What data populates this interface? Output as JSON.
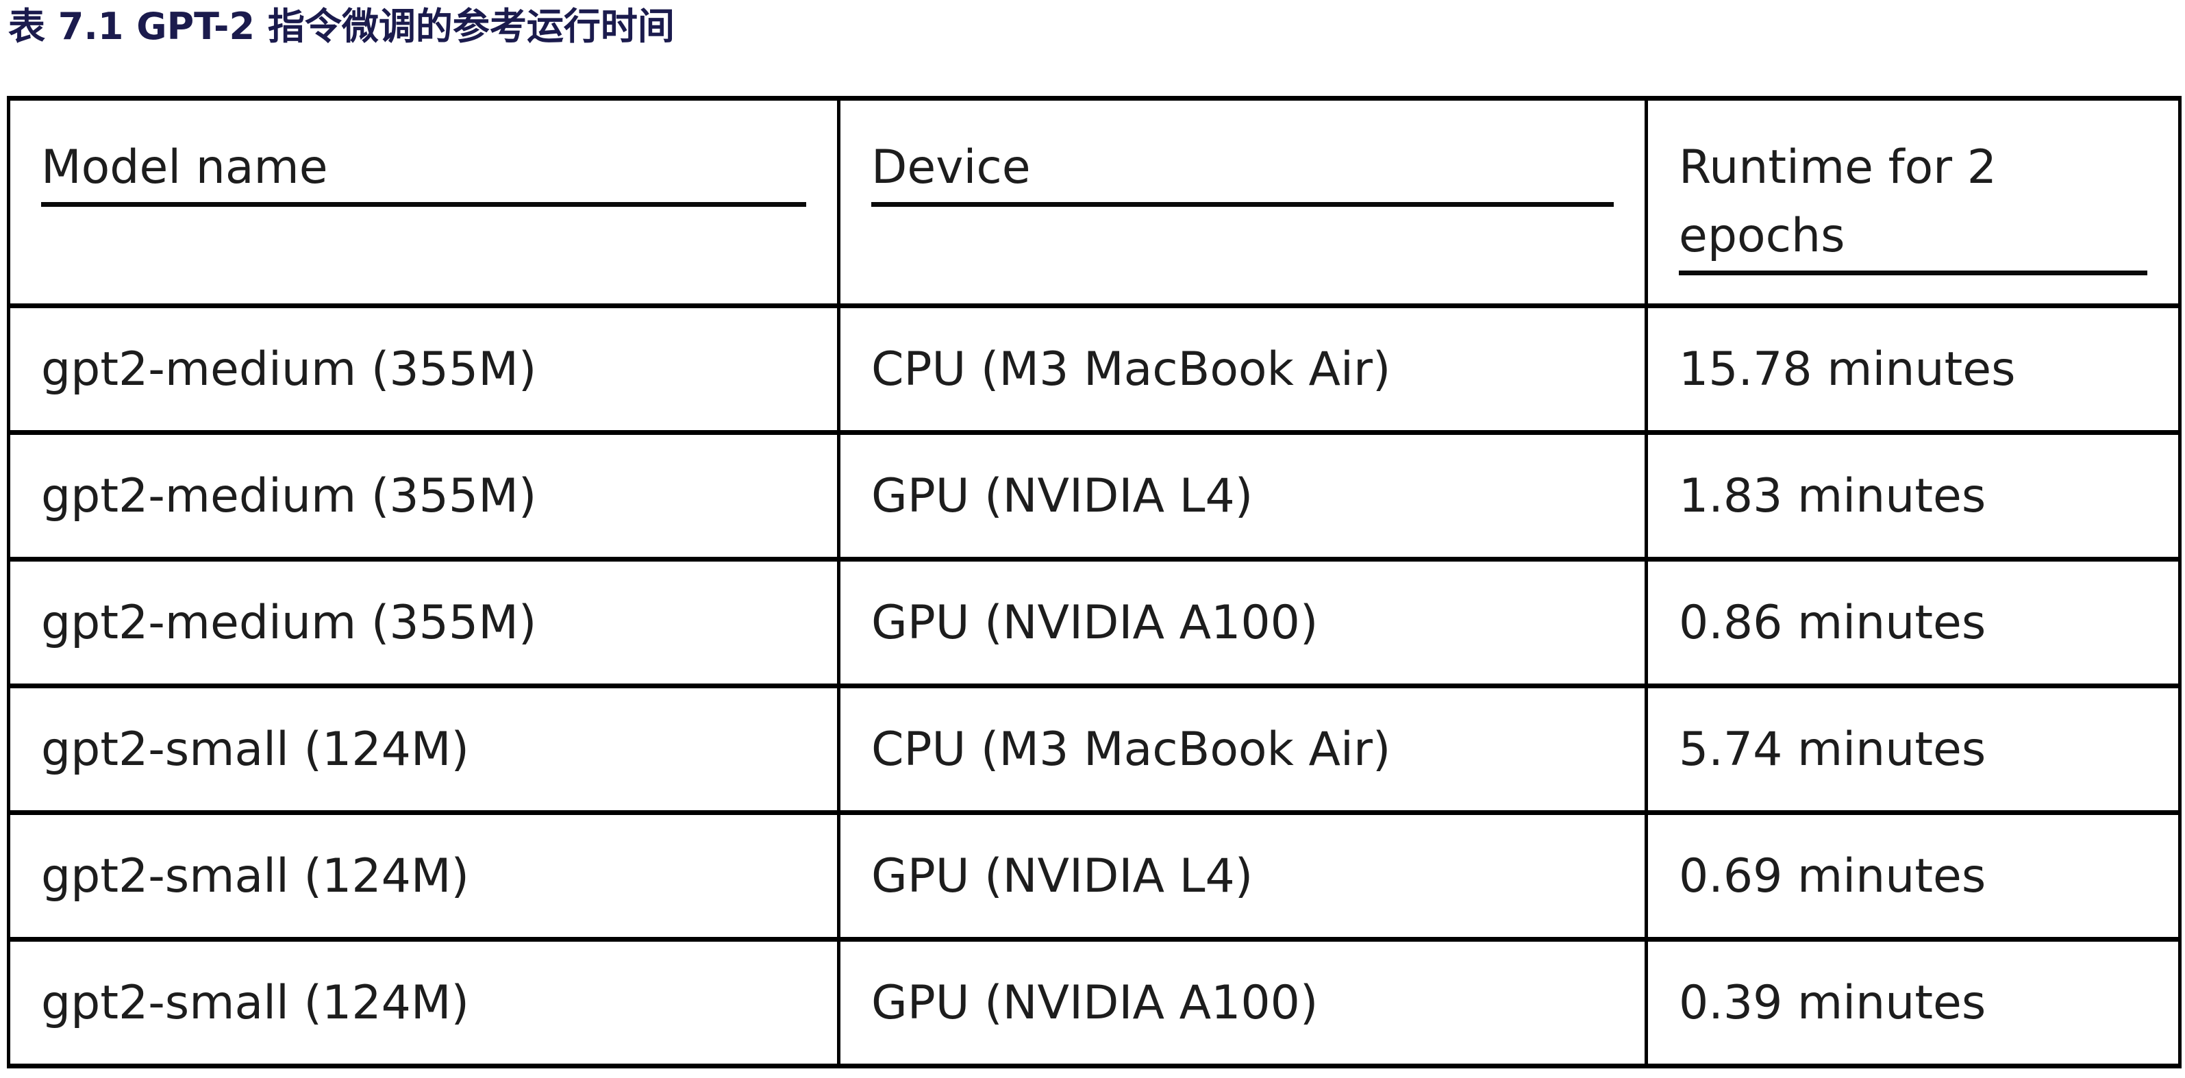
{
  "caption": "表 7.1 GPT-2 指令微调的参考运行时间",
  "table": {
    "columns": [
      {
        "label": "Model name"
      },
      {
        "label": "Device"
      },
      {
        "label": "Runtime for 2 epochs"
      }
    ],
    "rows": [
      {
        "model": "gpt2-medium (355M)",
        "device": "CPU (M3 MacBook Air)",
        "runtime": "15.78 minutes"
      },
      {
        "model": "gpt2-medium (355M)",
        "device": "GPU (NVIDIA L4)",
        "runtime": "1.83 minutes"
      },
      {
        "model": "gpt2-medium (355M)",
        "device": "GPU (NVIDIA A100)",
        "runtime": "0.86 minutes"
      },
      {
        "model": "gpt2-small (124M)",
        "device": "CPU (M3 MacBook Air)",
        "runtime": "5.74 minutes"
      },
      {
        "model": "gpt2-small (124M)",
        "device": "GPU (NVIDIA L4)",
        "runtime": "0.69 minutes"
      },
      {
        "model": "gpt2-small (124M)",
        "device": "GPU (NVIDIA A100)",
        "runtime": "0.39 minutes"
      }
    ]
  },
  "colors": {
    "caption_text": "#1b1b4d",
    "cell_text": "#1d1d1d",
    "border": "#000000",
    "background": "#ffffff"
  }
}
